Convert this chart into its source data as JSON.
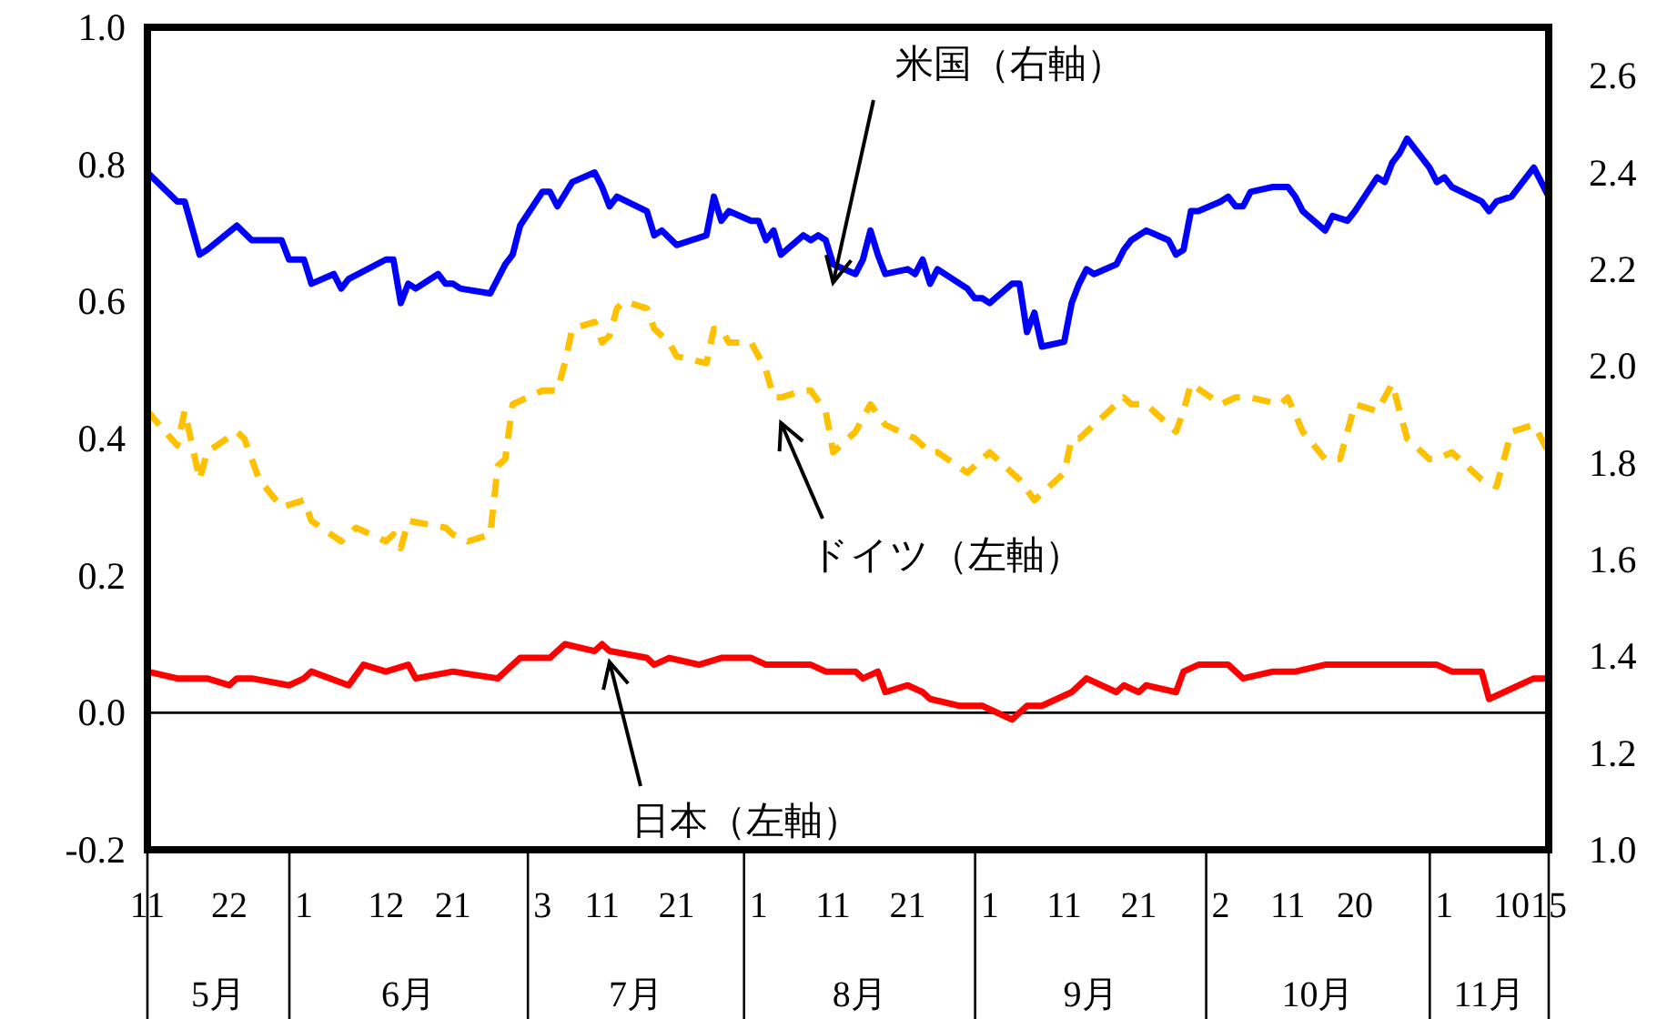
{
  "chart_data": {
    "type": "line",
    "xlim": [
      "--05-11",
      "--11-15"
    ],
    "xticks": [
      {
        "value": "--05-11",
        "label": "11"
      },
      {
        "value": "--05-22",
        "label": "22"
      },
      {
        "value": "--06-01",
        "label": "1"
      },
      {
        "value": "--06-12",
        "label": "12"
      },
      {
        "value": "--06-21",
        "label": "21"
      },
      {
        "value": "--07-03",
        "label": "3"
      },
      {
        "value": "--07-11",
        "label": "11"
      },
      {
        "value": "--07-21",
        "label": "21"
      },
      {
        "value": "--08-01",
        "label": "1"
      },
      {
        "value": "--08-11",
        "label": "11"
      },
      {
        "value": "--08-21",
        "label": "21"
      },
      {
        "value": "--09-01",
        "label": "1"
      },
      {
        "value": "--09-11",
        "label": "11"
      },
      {
        "value": "--09-21",
        "label": "21"
      },
      {
        "value": "--10-02",
        "label": "2"
      },
      {
        "value": "--10-11",
        "label": "11"
      },
      {
        "value": "--10-20",
        "label": "20"
      },
      {
        "value": "--11-01",
        "label": "1"
      },
      {
        "value": "--11-10",
        "label": "10"
      },
      {
        "value": "--11-15",
        "label": "15"
      }
    ],
    "ylim": [
      -0.2,
      1.0
    ],
    "yticks": [
      {
        "value": -0.2,
        "label": "-0.2"
      },
      {
        "value": 0,
        "label": "0.0"
      },
      {
        "value": 0.2,
        "label": "0.2"
      },
      {
        "value": 0.4,
        "label": "0.4"
      },
      {
        "value": 0.6,
        "label": "0.6"
      },
      {
        "value": 0.8,
        "label": "0.8"
      },
      {
        "value": 1.0,
        "label": "1.0"
      }
    ],
    "y2lim": [
      1.0,
      2.7
    ],
    "y2ticks": [
      {
        "value": 1.0,
        "label": "1.0"
      },
      {
        "value": 1.2,
        "label": "1.2"
      },
      {
        "value": 1.4,
        "label": "1.4"
      },
      {
        "value": 1.6,
        "label": "1.6"
      },
      {
        "value": 1.8,
        "label": "1.8"
      },
      {
        "value": 2.0,
        "label": "2.0"
      },
      {
        "value": 2.2,
        "label": "2.2"
      },
      {
        "value": 2.4,
        "label": "2.4"
      },
      {
        "value": 2.6,
        "label": "2.6"
      }
    ],
    "ref_lines": [
      {
        "axis": "y",
        "value": 0,
        "color": "#000000"
      }
    ],
    "annotations": [
      "5月",
      "6月",
      "7月",
      "8月",
      "9月",
      "10月",
      "11月"
    ],
    "series": [
      {
        "name": "米国（右軸）",
        "color": "#0000ff",
        "axis": "y2",
        "line_style": "solid",
        "x": [
          "--05-11",
          "--05-15",
          "--05-16",
          "--05-18",
          "--05-19",
          "--05-23",
          "--05-25",
          "--05-29",
          "--05-30",
          "--06-01",
          "--06-02",
          "--06-05",
          "--06-06",
          "--06-07",
          "--06-12",
          "--06-13",
          "--06-14",
          "--06-15",
          "--06-16",
          "--06-19",
          "--06-20",
          "--06-21",
          "--06-22",
          "--06-26",
          "--06-28",
          "--06-29",
          "--06-30",
          "--07-03",
          "--07-04",
          "--07-05",
          "--07-07",
          "--07-10",
          "--07-11",
          "--07-12",
          "--07-13",
          "--07-17",
          "--07-18",
          "--07-19",
          "--07-21",
          "--07-25",
          "--07-26",
          "--07-27",
          "--07-28",
          "--07-31",
          "--08-01",
          "--08-02",
          "--08-03",
          "--08-04",
          "--08-07",
          "--08-08",
          "--08-09",
          "--08-10",
          "--08-11",
          "--08-14",
          "--08-15",
          "--08-16",
          "--08-17",
          "--08-18",
          "--08-21",
          "--08-22",
          "--08-23",
          "--08-24",
          "--08-25",
          "--08-28",
          "--08-29",
          "--08-30",
          "--08-31",
          "--09-01",
          "--09-04",
          "--09-05",
          "--09-06",
          "--09-07",
          "--09-08",
          "--09-11",
          "--09-12",
          "--09-13",
          "--09-14",
          "--09-15",
          "--09-18",
          "--09-19",
          "--09-20",
          "--09-22",
          "--09-25",
          "--09-26",
          "--09-27",
          "--09-28",
          "--09-29",
          "--10-02",
          "--10-03",
          "--10-04",
          "--10-05",
          "--10-06",
          "--10-09",
          "--10-11",
          "--10-12",
          "--10-13",
          "--10-16",
          "--10-17",
          "--10-19",
          "--10-20",
          "--10-23",
          "--10-24",
          "--10-25",
          "--10-26",
          "--10-27",
          "--10-30",
          "--10-31",
          "--11-01",
          "--11-02",
          "--11-06",
          "--11-07",
          "--11-08",
          "--11-10",
          "--11-13",
          "--11-15"
        ],
        "values": [
          2.4,
          2.34,
          2.34,
          2.23,
          2.24,
          2.29,
          2.26,
          2.26,
          2.22,
          2.22,
          2.17,
          2.19,
          2.16,
          2.18,
          2.22,
          2.22,
          2.13,
          2.17,
          2.16,
          2.19,
          2.17,
          2.17,
          2.16,
          2.15,
          2.21,
          2.23,
          2.29,
          2.36,
          2.36,
          2.33,
          2.38,
          2.4,
          2.37,
          2.33,
          2.35,
          2.32,
          2.27,
          2.28,
          2.25,
          2.27,
          2.35,
          2.3,
          2.32,
          2.3,
          2.3,
          2.26,
          2.28,
          2.23,
          2.27,
          2.26,
          2.27,
          2.26,
          2.21,
          2.19,
          2.22,
          2.28,
          2.23,
          2.19,
          2.2,
          2.19,
          2.22,
          2.17,
          2.2,
          2.17,
          2.16,
          2.14,
          2.14,
          2.13,
          2.17,
          2.17,
          2.07,
          2.11,
          2.04,
          2.05,
          2.13,
          2.17,
          2.2,
          2.19,
          2.21,
          2.24,
          2.26,
          2.28,
          2.26,
          2.23,
          2.24,
          2.32,
          2.32,
          2.34,
          2.35,
          2.33,
          2.33,
          2.36,
          2.37,
          2.37,
          2.35,
          2.32,
          2.28,
          2.31,
          2.3,
          2.32,
          2.39,
          2.38,
          2.42,
          2.44,
          2.47,
          2.41,
          2.38,
          2.39,
          2.37,
          2.34,
          2.32,
          2.34,
          2.35,
          2.41,
          2.35
        ]
      },
      {
        "name": "ドイツ（左軸）",
        "color": "#ffc000",
        "line_style": "dashed",
        "x": [
          "--05-11",
          "--05-15",
          "--05-16",
          "--05-18",
          "--05-19",
          "--05-23",
          "--05-24",
          "--05-26",
          "--05-29",
          "--06-01",
          "--06-02",
          "--06-06",
          "--06-08",
          "--06-12",
          "--06-13",
          "--06-14",
          "--06-15",
          "--06-20",
          "--06-21",
          "--06-23",
          "--06-26",
          "--06-27",
          "--06-28",
          "--06-29",
          "--07-03",
          "--07-05",
          "--07-06",
          "--07-07",
          "--07-10",
          "--07-11",
          "--07-12",
          "--07-13",
          "--07-14",
          "--07-17",
          "--07-18",
          "--07-20",
          "--07-21",
          "--07-25",
          "--07-26",
          "--07-27",
          "--07-28",
          "--07-31",
          "--08-02",
          "--08-03",
          "--08-04",
          "--08-07",
          "--08-08",
          "--08-10",
          "--08-11",
          "--08-14",
          "--08-16",
          "--08-18",
          "--08-22",
          "--08-24",
          "--08-25",
          "--08-29",
          "--08-30",
          "--09-01",
          "--09-05",
          "--09-07",
          "--09-11",
          "--09-12",
          "--09-13",
          "--09-19",
          "--09-20",
          "--09-22",
          "--09-25",
          "--09-26",
          "--09-27",
          "--09-28",
          "--10-02",
          "--10-04",
          "--10-06",
          "--10-10",
          "--10-11",
          "--10-13",
          "--10-16",
          "--10-18",
          "--10-20",
          "--10-23",
          "--10-25",
          "--10-27",
          "--10-30",
          "--10-31",
          "--11-02",
          "--11-06",
          "--11-08",
          "--11-10",
          "--11-13",
          "--11-15"
        ],
        "values": [
          0.44,
          0.39,
          0.44,
          0.34,
          0.38,
          0.41,
          0.4,
          0.34,
          0.3,
          0.31,
          0.28,
          0.25,
          0.27,
          0.25,
          0.26,
          0.24,
          0.28,
          0.27,
          0.26,
          0.25,
          0.26,
          0.36,
          0.37,
          0.45,
          0.47,
          0.47,
          0.51,
          0.56,
          0.57,
          0.54,
          0.55,
          0.59,
          0.6,
          0.59,
          0.56,
          0.54,
          0.52,
          0.51,
          0.56,
          0.56,
          0.54,
          0.54,
          0.5,
          0.46,
          0.46,
          0.47,
          0.47,
          0.44,
          0.38,
          0.41,
          0.45,
          0.42,
          0.4,
          0.38,
          0.38,
          0.35,
          0.36,
          0.38,
          0.34,
          0.31,
          0.35,
          0.4,
          0.4,
          0.46,
          0.45,
          0.45,
          0.42,
          0.41,
          0.44,
          0.48,
          0.45,
          0.46,
          0.46,
          0.45,
          0.46,
          0.41,
          0.37,
          0.37,
          0.45,
          0.44,
          0.48,
          0.4,
          0.37,
          0.37,
          0.38,
          0.34,
          0.33,
          0.41,
          0.42,
          0.38
        ]
      },
      {
        "name": "日本（左軸）",
        "color": "#ff0000",
        "line_style": "solid",
        "x": [
          "--05-11",
          "--05-15",
          "--05-19",
          "--05-22",
          "--05-23",
          "--05-24",
          "--05-25",
          "--05-30",
          "--06-01",
          "--06-02",
          "--06-07",
          "--06-09",
          "--06-12",
          "--06-15",
          "--06-16",
          "--06-21",
          "--06-27",
          "--06-28",
          "--06-30",
          "--07-04",
          "--07-06",
          "--07-10",
          "--07-11",
          "--07-12",
          "--07-17",
          "--07-18",
          "--07-20",
          "--07-24",
          "--07-27",
          "--07-31",
          "--08-02",
          "--08-04",
          "--08-08",
          "--08-10",
          "--08-14",
          "--08-15",
          "--08-17",
          "--08-18",
          "--08-21",
          "--08-23",
          "--08-24",
          "--08-28",
          "--08-31",
          "--09-04",
          "--09-06",
          "--09-08",
          "--09-12",
          "--09-14",
          "--09-18",
          "--09-19",
          "--09-21",
          "--09-22",
          "--09-26",
          "--09-27",
          "--09-29",
          "--10-02",
          "--10-03",
          "--10-05",
          "--10-09",
          "--10-12",
          "--10-16",
          "--10-18",
          "--10-23",
          "--10-25",
          "--10-27",
          "--10-31",
          "--11-02",
          "--11-06",
          "--11-07",
          "--11-09",
          "--11-13",
          "--11-15"
        ],
        "values": [
          0.06,
          0.05,
          0.05,
          0.04,
          0.05,
          0.05,
          0.05,
          0.04,
          0.05,
          0.06,
          0.04,
          0.07,
          0.06,
          0.07,
          0.05,
          0.06,
          0.05,
          0.06,
          0.08,
          0.08,
          0.1,
          0.09,
          0.1,
          0.09,
          0.08,
          0.07,
          0.08,
          0.07,
          0.08,
          0.08,
          0.07,
          0.07,
          0.07,
          0.06,
          0.06,
          0.05,
          0.06,
          0.03,
          0.04,
          0.03,
          0.02,
          0.01,
          0.01,
          -0.01,
          0.01,
          0.01,
          0.03,
          0.05,
          0.03,
          0.04,
          0.03,
          0.04,
          0.03,
          0.06,
          0.07,
          0.07,
          0.07,
          0.05,
          0.06,
          0.06,
          0.07,
          0.07,
          0.07,
          0.07,
          0.07,
          0.07,
          0.06,
          0.06,
          0.02,
          0.03,
          0.05,
          0.05
        ]
      }
    ]
  }
}
